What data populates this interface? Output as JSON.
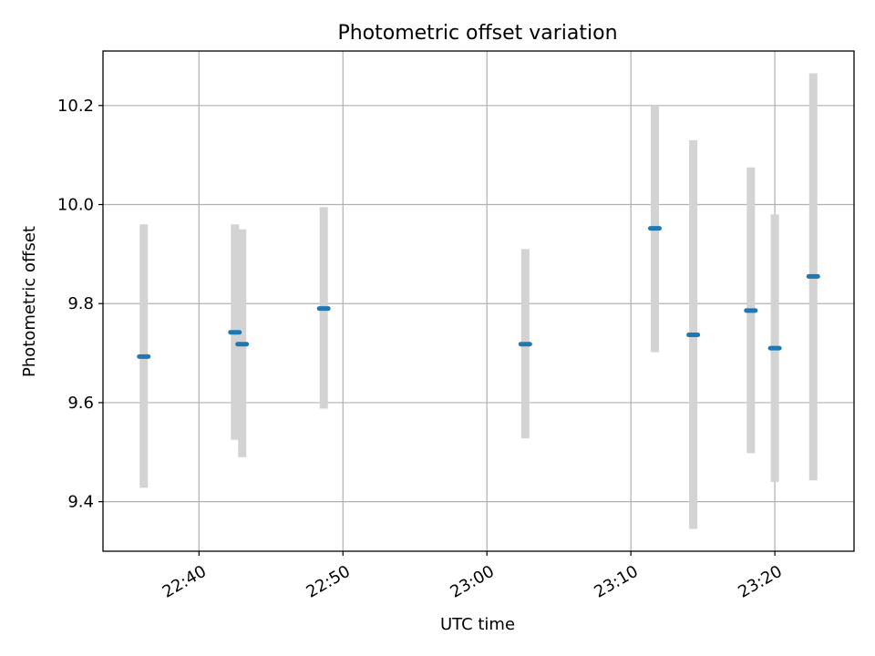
{
  "chart_data": {
    "type": "scatter",
    "title": "Photometric offset variation",
    "xlabel": "UTC time",
    "ylabel": "Photometric offset",
    "x_ticks": [
      "22:40",
      "22:50",
      "23:00",
      "23:10",
      "23:20"
    ],
    "y_ticks": [
      "9.4",
      "9.6",
      "9.8",
      "10.0",
      "10.2"
    ],
    "xlim": [
      "22:33:20",
      "23:25:30"
    ],
    "ylim": [
      9.3,
      10.31
    ],
    "grid": true,
    "errorbar_color": "#d3d3d3",
    "marker_color": "#1f77b4",
    "points": [
      {
        "x": "22:36:10",
        "y": 9.693,
        "yerr_low": 9.428,
        "yerr_high": 9.96
      },
      {
        "x": "22:42:30",
        "y": 9.742,
        "yerr_low": 9.525,
        "yerr_high": 9.96
      },
      {
        "x": "22:43:00",
        "y": 9.718,
        "yerr_low": 9.49,
        "yerr_high": 9.95
      },
      {
        "x": "22:48:40",
        "y": 9.79,
        "yerr_low": 9.588,
        "yerr_high": 9.995
      },
      {
        "x": "23:02:40",
        "y": 9.718,
        "yerr_low": 9.528,
        "yerr_high": 9.91
      },
      {
        "x": "23:11:40",
        "y": 9.952,
        "yerr_low": 9.702,
        "yerr_high": 10.2
      },
      {
        "x": "23:14:20",
        "y": 9.737,
        "yerr_low": 9.345,
        "yerr_high": 10.13
      },
      {
        "x": "23:18:20",
        "y": 9.786,
        "yerr_low": 9.498,
        "yerr_high": 10.075
      },
      {
        "x": "23:20:00",
        "y": 9.71,
        "yerr_low": 9.44,
        "yerr_high": 9.98
      },
      {
        "x": "23:22:40",
        "y": 9.855,
        "yerr_low": 9.443,
        "yerr_high": 10.265
      }
    ]
  }
}
